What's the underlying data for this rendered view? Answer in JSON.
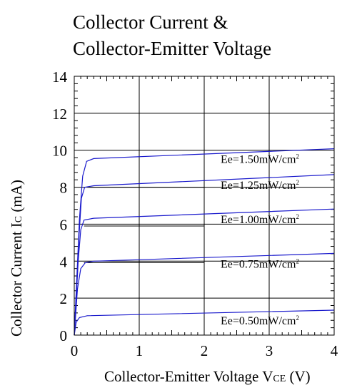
{
  "chart_data": {
    "type": "line",
    "title_lines": [
      "Collector Current &",
      "Collector-Emitter Voltage"
    ],
    "xlabel": {
      "main": "Collector-Emitter Voltage V",
      "sub": "CE",
      "unit": " (V)"
    },
    "ylabel": {
      "main": "Collector Current I",
      "sub": "C",
      "unit": " (mA)"
    },
    "xlim": [
      0,
      4
    ],
    "ylim": [
      0,
      14
    ],
    "xticks": [
      0,
      1,
      2,
      3,
      4
    ],
    "yticks": [
      0,
      2,
      4,
      6,
      8,
      10,
      12,
      14
    ],
    "grid": true,
    "line_color": "#1a1acc",
    "series": [
      {
        "label": "Ee=0.50mW/cm",
        "sup": "2",
        "points": [
          [
            0,
            0
          ],
          [
            0.03,
            0.7
          ],
          [
            0.08,
            0.95
          ],
          [
            0.2,
            1.05
          ],
          [
            4,
            1.35
          ]
        ]
      },
      {
        "label": "Ee=0.75mW/cm",
        "sup": "2",
        "points": [
          [
            0,
            0
          ],
          [
            0.05,
            2.5
          ],
          [
            0.1,
            3.6
          ],
          [
            0.17,
            3.92
          ],
          [
            0.3,
            4.0
          ],
          [
            4,
            4.42
          ]
        ]
      },
      {
        "label": "Ee=1.00mW/cm",
        "sup": "2",
        "points": [
          [
            0,
            0
          ],
          [
            0.06,
            4.0
          ],
          [
            0.1,
            5.7
          ],
          [
            0.15,
            6.22
          ],
          [
            0.3,
            6.32
          ],
          [
            4,
            6.82
          ]
        ]
      },
      {
        "label": "Ee=1.25mW/cm",
        "sup": "2",
        "points": [
          [
            0,
            0
          ],
          [
            0.07,
            5.2
          ],
          [
            0.11,
            7.4
          ],
          [
            0.16,
            8.0
          ],
          [
            0.3,
            8.08
          ],
          [
            4,
            8.68
          ]
        ]
      },
      {
        "label": "Ee=1.50mW/cm",
        "sup": "2",
        "points": [
          [
            0,
            0
          ],
          [
            0.08,
            6.3
          ],
          [
            0.13,
            8.6
          ],
          [
            0.19,
            9.4
          ],
          [
            0.3,
            9.55
          ],
          [
            4,
            10.08
          ]
        ]
      }
    ],
    "reference_lines": [
      {
        "y": 8.0,
        "x_range": [
          0.2,
          2
        ]
      },
      {
        "y": 5.9,
        "x_range": [
          0.15,
          2
        ]
      },
      {
        "y": 3.92,
        "x_range": [
          0.15,
          2
        ]
      }
    ]
  }
}
